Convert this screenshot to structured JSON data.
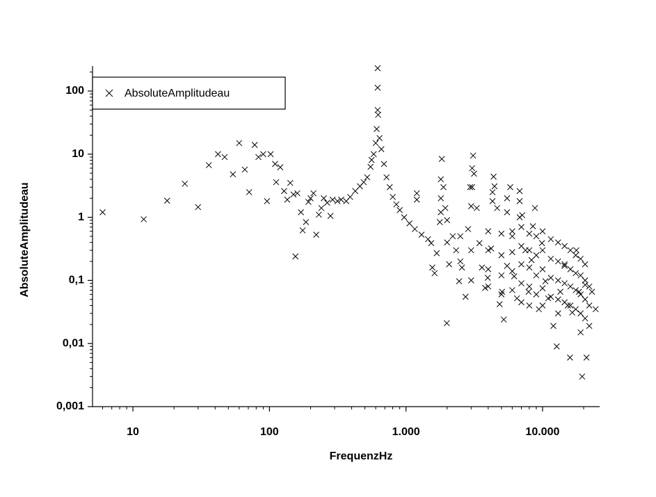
{
  "chart_data": {
    "type": "scatter",
    "x_label": "FrequenzHz",
    "y_label": "AbsoluteAmplitudeau",
    "xscale": "log",
    "yscale": "log",
    "marker": "x",
    "legend": "upper-left",
    "xlim": [
      5.06,
      26200
    ],
    "ylim": [
      0.001,
      249
    ],
    "xticks": [
      10,
      100,
      {
        "value": 1000,
        "label": "1.000"
      },
      {
        "value": 10000,
        "label": "10.000"
      }
    ],
    "yticks": [
      {
        "value": 0.001,
        "label": "0,001"
      },
      {
        "value": 0.01,
        "label": "0,01"
      },
      {
        "value": 0.1,
        "label": "0,1"
      },
      1,
      10,
      100
    ],
    "xminorticks": [
      6,
      7,
      8,
      9,
      20,
      30,
      40,
      50,
      60,
      70,
      80,
      90,
      200,
      300,
      400,
      500,
      600,
      700,
      800,
      900,
      2000,
      3000,
      4000,
      5000,
      6000,
      7000,
      8000,
      9000,
      20000
    ],
    "yminorticks": [
      0.002,
      0.003,
      0.004,
      0.005,
      0.006,
      0.007,
      0.008,
      0.009,
      0.02,
      0.03,
      0.04,
      0.05,
      0.06,
      0.07,
      0.08,
      0.09,
      0.2,
      0.3,
      0.4,
      0.5,
      0.6,
      0.7,
      0.8,
      0.9,
      2,
      3,
      4,
      5,
      6,
      7,
      8,
      9,
      20,
      30,
      40,
      50,
      60,
      70,
      80,
      90,
      200
    ],
    "x": [
      6,
      12,
      17.8,
      24,
      30,
      36,
      42,
      47,
      54,
      60,
      66,
      71,
      78,
      83,
      90,
      96,
      102,
      110,
      112,
      120,
      128,
      135,
      142,
      150,
      155,
      160,
      170,
      175,
      185,
      193,
      200,
      210,
      220,
      230,
      240,
      250,
      265,
      280,
      290,
      315,
      335,
      365,
      390,
      425,
      460,
      490,
      520,
      550,
      560,
      580,
      600,
      610,
      620,
      620,
      620,
      625,
      640,
      660,
      690,
      720,
      760,
      800,
      850,
      900,
      970,
      1060,
      1160,
      1200,
      1200,
      1300,
      1450,
      1530,
      1560,
      1620,
      1680,
      1770,
      1830,
      1880,
      1940,
      1990,
      2070,
      2200,
      2330,
      2450,
      2570,
      2730,
      2850,
      2950,
      3100,
      3150,
      3300,
      3450,
      3600,
      3800,
      3970,
      4200,
      4380,
      4450,
      4650,
      4850,
      5050,
      5200,
      5500,
      5800,
      6000,
      6200,
      6500,
      6800,
      7100,
      7500,
      7900,
      8300,
      8500,
      8800,
      9400,
      9900,
      10500,
      11000,
      12000,
      12700,
      13500,
      14500,
      15300,
      15900,
      16500,
      17700,
      18500,
      19500,
      20500,
      21000,
      22000,
      23000,
      24500,
      4000,
      4000,
      4000,
      4000,
      5000,
      5000,
      5000,
      5000,
      6000,
      6000,
      6000,
      6000,
      7000,
      7000,
      7000,
      7000,
      7000,
      8000,
      8000,
      8000,
      8000,
      8000,
      9000,
      9000,
      9000,
      9000,
      10000,
      10000,
      10000,
      10000,
      10000,
      11500,
      11500,
      11500,
      11500,
      13000,
      13000,
      13000,
      13000,
      13000,
      14500,
      14500,
      14500,
      14500,
      16000,
      16000,
      16000,
      16000,
      17500,
      17500,
      17500,
      17500,
      19000,
      19000,
      19000,
      19000,
      19000,
      20500,
      20500,
      20500,
      20500,
      22000,
      22000,
      2000,
      2000,
      2500,
      2500,
      3000,
      3000,
      3000,
      1800,
      1800,
      1800,
      3050,
      3050,
      4300,
      4300,
      5500,
      5500,
      6800,
      6800
    ],
    "series": [
      {
        "name": "AbsoluteAmplitudeau",
        "color": "#000000",
        "values": [
          1.2,
          0.93,
          1.83,
          3.4,
          1.45,
          6.7,
          10,
          9,
          4.8,
          15,
          5.7,
          2.5,
          14,
          9,
          10,
          1.8,
          10,
          7,
          3.6,
          6.2,
          2.6,
          1.9,
          3.5,
          2.3,
          0.24,
          2.4,
          1.2,
          0.62,
          0.84,
          1.75,
          2,
          2.4,
          0.53,
          1.1,
          1.4,
          2,
          1.7,
          1.05,
          1.9,
          1.8,
          1.9,
          1.8,
          2.1,
          2.6,
          3.1,
          3.6,
          4.3,
          6.3,
          8.1,
          10,
          15,
          25,
          50,
          113,
          230,
          42,
          18,
          12,
          7,
          4.3,
          3,
          2.1,
          1.6,
          1.3,
          1,
          0.8,
          0.65,
          2.4,
          1.9,
          0.53,
          0.45,
          0.39,
          0.16,
          0.13,
          0.27,
          0.84,
          8.4,
          3,
          1.4,
          0.021,
          0.18,
          0.5,
          0.3,
          0.097,
          0.16,
          0.055,
          0.65,
          3,
          9.5,
          4.9,
          1.4,
          0.39,
          0.16,
          0.076,
          0.11,
          0.32,
          4.4,
          3.1,
          1.4,
          0.042,
          0.066,
          0.024,
          0.17,
          3,
          0.5,
          0.116,
          0.052,
          2.6,
          1.08,
          0.3,
          0.066,
          0.21,
          0.72,
          1.4,
          0.035,
          0.39,
          0.097,
          0.052,
          0.019,
          0.009,
          0.066,
          0.18,
          0.04,
          0.006,
          0.031,
          0.3,
          0.066,
          0.003,
          0.085,
          0.006,
          0.019,
          0.066,
          0.035,
          0.6,
          0.3,
          0.15,
          0.08,
          0.55,
          0.25,
          0.12,
          0.06,
          0.6,
          0.28,
          0.14,
          0.07,
          0.7,
          0.35,
          0.18,
          0.09,
          0.045,
          0.55,
          0.3,
          0.16,
          0.08,
          0.04,
          0.5,
          0.25,
          0.12,
          0.06,
          0.6,
          0.3,
          0.15,
          0.075,
          0.04,
          0.45,
          0.22,
          0.11,
          0.055,
          0.4,
          0.2,
          0.1,
          0.05,
          0.03,
          0.35,
          0.17,
          0.09,
          0.045,
          0.3,
          0.15,
          0.08,
          0.04,
          0.25,
          0.13,
          0.07,
          0.035,
          0.22,
          0.12,
          0.06,
          0.03,
          0.015,
          0.18,
          0.1,
          0.05,
          0.025,
          0.08,
          0.04,
          0.9,
          0.4,
          0.5,
          0.2,
          1.5,
          0.3,
          0.1,
          2,
          4,
          1.2,
          6,
          3,
          2.5,
          1.8,
          2,
          1.2,
          1.8,
          1
        ]
      }
    ]
  }
}
